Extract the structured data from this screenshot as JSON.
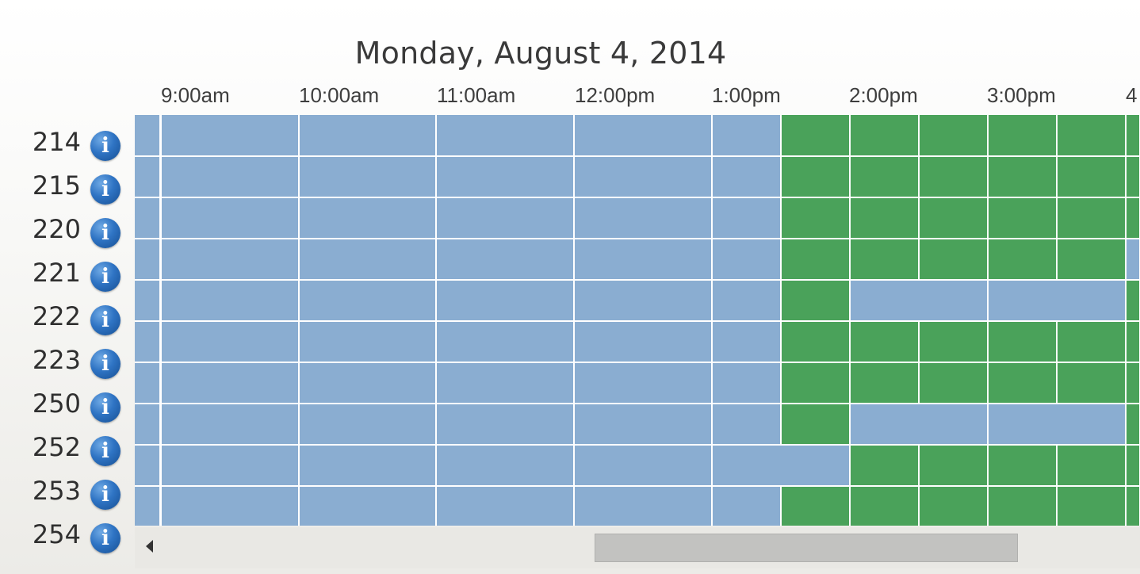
{
  "schedule": {
    "date_title": "Monday, August 4, 2014",
    "time_slots": [
      "9:00am",
      "10:00am",
      "11:00am",
      "12:00pm",
      "1:00pm",
      "2:00pm",
      "3:00pm",
      "4"
    ],
    "info_glyph": "i",
    "legend_colors": {
      "available": "#8aadd1",
      "booked": "#4aa25a"
    },
    "rooms": [
      {
        "label": "214"
      },
      {
        "label": "215"
      },
      {
        "label": "220"
      },
      {
        "label": "221"
      },
      {
        "label": "222"
      },
      {
        "label": "223"
      },
      {
        "label": "250"
      },
      {
        "label": "252"
      },
      {
        "label": "253"
      },
      {
        "label": "254"
      }
    ]
  },
  "scrollbar": {
    "left_arrow_icon": "arrow-left-icon"
  }
}
